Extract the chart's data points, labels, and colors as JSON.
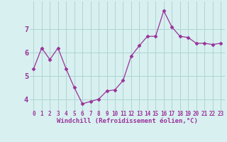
{
  "x": [
    0,
    1,
    2,
    3,
    4,
    5,
    6,
    7,
    8,
    9,
    10,
    11,
    12,
    13,
    14,
    15,
    16,
    17,
    18,
    19,
    20,
    21,
    22,
    23
  ],
  "y": [
    5.3,
    6.2,
    5.7,
    6.2,
    5.3,
    4.5,
    3.8,
    3.9,
    4.0,
    4.35,
    4.4,
    4.8,
    5.85,
    6.3,
    6.7,
    6.7,
    7.8,
    7.1,
    6.7,
    6.65,
    6.4,
    6.4,
    6.35,
    6.4
  ],
  "line_color": "#993399",
  "marker": "D",
  "marker_size": 2.5,
  "bg_color": "#d8f0f0",
  "grid_color": "#b0d4d4",
  "xlabel": "Windchill (Refroidissement éolien,°C)",
  "ylim": [
    3.5,
    8.2
  ],
  "yticks": [
    4,
    5,
    6,
    7
  ],
  "xticks": [
    0,
    1,
    2,
    3,
    4,
    5,
    6,
    7,
    8,
    9,
    10,
    11,
    12,
    13,
    14,
    15,
    16,
    17,
    18,
    19,
    20,
    21,
    22,
    23
  ],
  "line_color_dark": "#7a1a7a",
  "label_fontsize": 6.5,
  "tick_fontsize": 5.5,
  "ytick_fontsize": 7.5
}
